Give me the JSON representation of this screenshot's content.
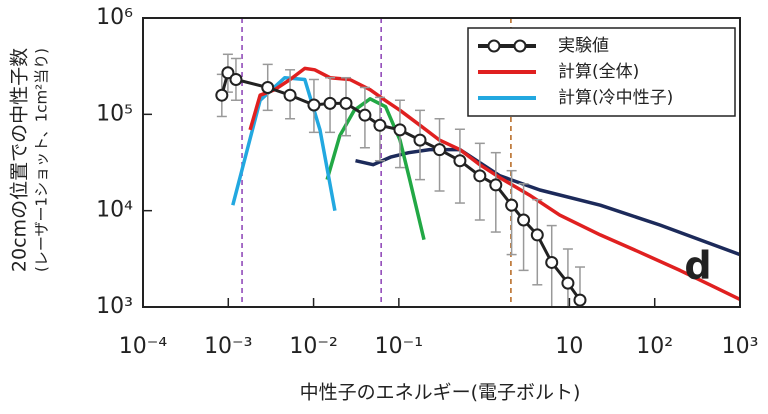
{
  "chart_data": {
    "type": "line",
    "xscale": "log",
    "yscale": "log",
    "xlabel": "中性子のエネルギー(電子ボルト)",
    "ylabel": [
      "20cmの位置での中性子数",
      "(レーザー1ショット、1cm²当り)"
    ],
    "xlim": [
      0.0001,
      1000
    ],
    "ylim": [
      1000,
      1000000
    ],
    "xticks": [
      {
        "value": 0.0001,
        "label": "10⁻⁴"
      },
      {
        "value": 0.001,
        "label": "10⁻³"
      },
      {
        "value": 0.01,
        "label": "10⁻²"
      },
      {
        "value": 0.1,
        "label": "10⁻¹"
      },
      10,
      {
        "value": 100,
        "label": "10²"
      },
      {
        "value": 1000,
        "label": "10³"
      }
    ],
    "yticks": [
      {
        "value": 1000,
        "label": "10³"
      },
      {
        "value": 10000,
        "label": "10⁴"
      },
      {
        "value": 100000,
        "label": "10⁵"
      },
      {
        "value": 1000000,
        "label": "10⁶"
      }
    ],
    "legend": "upper right",
    "annotation": "d",
    "vlines": [
      {
        "x": 0.00145,
        "color": "#8a3fb5"
      },
      {
        "x": 0.062,
        "color": "#8a3fb5"
      },
      {
        "x": 2.06,
        "color": "#b5651d"
      }
    ],
    "series": [
      {
        "color": "#1c2a5a",
        "x": [
          0.031,
          0.05,
          0.08,
          0.13,
          0.23,
          0.52,
          1.53,
          4.5,
          23,
          115,
          1000
        ],
        "values": [
          33000,
          30000,
          36000,
          40000,
          43000,
          43000,
          23000,
          16400,
          11400,
          7100,
          3500
        ]
      },
      {
        "color": "#22a845",
        "x": [
          0.0144,
          0.0203,
          0.03,
          0.046,
          0.07,
          0.103,
          0.134,
          0.197
        ],
        "values": [
          21000,
          60000,
          110000,
          145000,
          120000,
          54000,
          21000,
          5000
        ]
      },
      {
        "name": "計算(冷中性子)",
        "color": "#22a8e0",
        "x": [
          0.00113,
          0.00236,
          0.0046,
          0.0079,
          0.0119,
          0.0178
        ],
        "values": [
          11400,
          140000,
          240000,
          230000,
          69000,
          10000
        ]
      },
      {
        "name": "計算(全体)",
        "color": "#e02020",
        "x": [
          0.0018,
          0.00236,
          0.0035,
          0.0053,
          0.0079,
          0.0103,
          0.0156,
          0.0267,
          0.046,
          0.069,
          0.103,
          0.177,
          0.3,
          0.52,
          0.89,
          1.53,
          3.4,
          7.7,
          23,
          67,
          198,
          444,
          1000
        ],
        "values": [
          69000,
          158000,
          180000,
          230000,
          300000,
          290000,
          240000,
          230000,
          180000,
          140000,
          110000,
          77000,
          54000,
          43000,
          30000,
          22000,
          14500,
          9000,
          5600,
          3700,
          2400,
          1700,
          1200
        ]
      },
      {
        "name": "実験値",
        "color": "#222222",
        "marker": "circle",
        "x": [
          0.00084,
          0.00099,
          0.00123,
          0.0029,
          0.0053,
          0.0101,
          0.0156,
          0.024,
          0.04,
          0.06,
          0.103,
          0.177,
          0.3,
          0.52,
          0.89,
          1.37,
          2.1,
          2.9,
          4.2,
          6.2,
          9.6,
          13.3
        ],
        "values": [
          158000,
          270000,
          230000,
          190000,
          158000,
          125000,
          130000,
          130000,
          98000,
          77000,
          69000,
          54000,
          43000,
          33000,
          23000,
          18500,
          11400,
          8000,
          5600,
          2900,
          1770,
          1180
        ],
        "err_low": [
          95000,
          170000,
          140000,
          110000,
          90000,
          65000,
          65000,
          60000,
          45000,
          33000,
          28000,
          21000,
          16000,
          12000,
          8000,
          6000,
          3500,
          2400,
          1700,
          1000,
          800,
          700
        ],
        "err_high": [
          260000,
          420000,
          380000,
          330000,
          290000,
          230000,
          240000,
          240000,
          190000,
          150000,
          140000,
          110000,
          90000,
          70000,
          50000,
          40000,
          26000,
          19000,
          13000,
          7000,
          4000,
          2600
        ],
        "err_color": "#999999"
      }
    ]
  }
}
